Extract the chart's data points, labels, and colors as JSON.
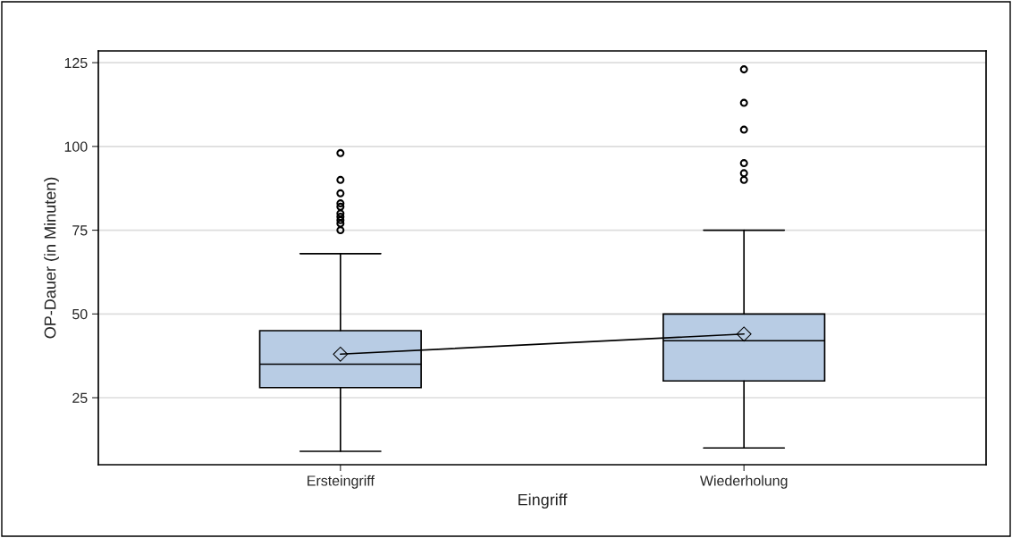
{
  "chart_data": {
    "type": "box",
    "xlabel": "Eingriff",
    "ylabel": "OP-Dauer (in Minuten)",
    "categories": [
      "Ersteingriff",
      "Wiederholung"
    ],
    "boxes": [
      {
        "low": 9,
        "q1": 28,
        "median": 35,
        "q3": 45,
        "high": 68,
        "outliers": [
          98,
          90,
          86,
          83,
          82,
          80,
          79,
          78,
          77,
          75
        ]
      },
      {
        "low": 10,
        "q1": 30,
        "median": 42,
        "q3": 50,
        "high": 75,
        "outliers": [
          123,
          113,
          105,
          95,
          92,
          90
        ]
      }
    ],
    "color": "#b8cce4",
    "series": [
      {
        "type": "line",
        "x": [
          "Ersteingriff",
          "Wiederholung"
        ],
        "values": [
          38,
          44
        ],
        "color": "#000000",
        "marker": "diamond"
      }
    ],
    "ylim": [
      5,
      128.5
    ],
    "yticks": [
      25,
      50,
      75,
      100,
      125
    ],
    "grid": "y",
    "legend": false
  }
}
